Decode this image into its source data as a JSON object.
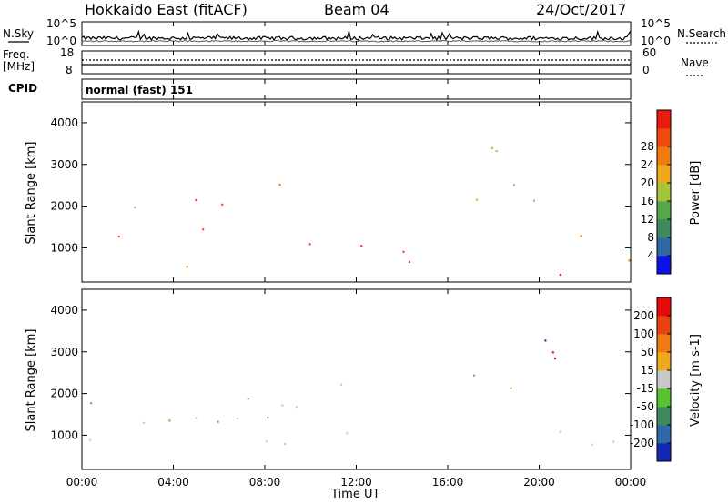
{
  "header": {
    "station": "Hokkaido East (fitACF)",
    "beam": "Beam 04",
    "date": "24/Oct/2017"
  },
  "noise_panel": {
    "label": "N.Sky",
    "right_label": "N.Search",
    "tick_top": "10^5",
    "tick_bottom": "10^0"
  },
  "freq_panel": {
    "label_line1": "Freq.",
    "label_line2": "[MHz]",
    "tick_top": "18",
    "tick_bottom": "8",
    "right_tick_top": "60",
    "right_tick_bottom": "0",
    "right_label": "Nave"
  },
  "cpid_panel": {
    "label": "CPID",
    "mode": "normal (fast) 151"
  },
  "x_axis": {
    "ticks": [
      "00:00",
      "04:00",
      "08:00",
      "12:00",
      "16:00",
      "20:00",
      "00:00"
    ],
    "label": "Time UT"
  },
  "chart_data": [
    {
      "type": "heatmap",
      "title": "Power",
      "ylabel": "Slant Range [km]",
      "xlabel": "Time UT",
      "y_ticks": [
        "1000",
        "2000",
        "3000",
        "4000"
      ],
      "ylim": [
        180,
        4500
      ],
      "xlim_hours": [
        0,
        24
      ],
      "colorbar": {
        "label": "Power [dB]",
        "ticks": [
          "4",
          "8",
          "12",
          "16",
          "20",
          "24",
          "28"
        ],
        "colors": [
          "#0a14e6",
          "#2e6aa8",
          "#3d8a5e",
          "#56a64a",
          "#a6c43a",
          "#f0a81e",
          "#f07a10",
          "#f04a0a",
          "#e81c0a"
        ]
      }
    },
    {
      "type": "heatmap",
      "title": "Velocity",
      "ylabel": "Slant Range [km]",
      "xlabel": "Time UT",
      "y_ticks": [
        "1000",
        "2000",
        "3000",
        "4000"
      ],
      "ylim": [
        180,
        4500
      ],
      "xlim_hours": [
        0,
        24
      ],
      "colorbar": {
        "label": "Velocity [m s-1]",
        "ticks": [
          "200",
          "100",
          "50",
          "15",
          "-15",
          "-50",
          "-100",
          "-200"
        ],
        "colors": [
          "#1428b4",
          "#2e6aa8",
          "#3d8a5e",
          "#56c430",
          "#c8c8c8",
          "#f0a81e",
          "#f07a10",
          "#e84410",
          "#e80a0a"
        ]
      }
    }
  ]
}
